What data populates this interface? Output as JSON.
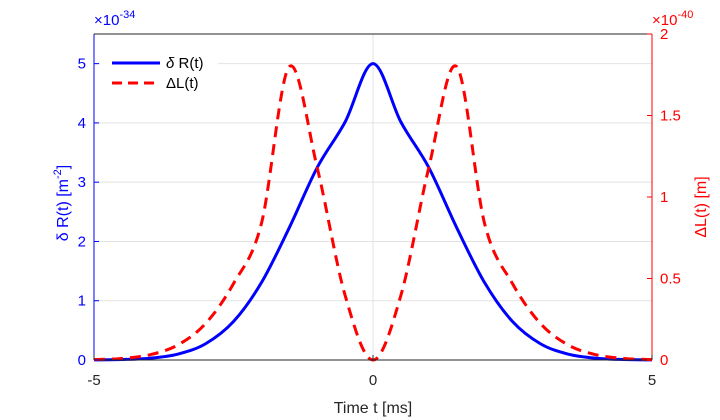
{
  "chart_data": {
    "type": "line",
    "xlabel": "Time t [ms]",
    "xlim": [
      -5,
      5
    ],
    "xticks": [
      -5,
      0,
      5
    ],
    "y_left": {
      "label": "δ R(t) [m-2]",
      "label_parts": {
        "prefix": "δ R(t) [m",
        "sup": "-2",
        "suffix": "]"
      },
      "color": "#0000ff",
      "lim": [
        0,
        5.5
      ],
      "ticks": [
        0,
        1,
        2,
        3,
        4,
        5
      ],
      "exponent_label": {
        "base": "×10",
        "exp": "-34"
      }
    },
    "y_right": {
      "label": "ΔL(t) [m]",
      "color": "#ff0000",
      "lim": [
        0,
        2
      ],
      "ticks": [
        0,
        0.5,
        1,
        1.5,
        2
      ],
      "tick_labels": [
        "0",
        "0.5",
        "1",
        "1.5",
        "2"
      ],
      "exponent_label": {
        "base": "×10",
        "exp": "-40"
      }
    },
    "legend": {
      "placement": "top-left",
      "entries": [
        {
          "series": 0,
          "label_prefix": "δ",
          "label_rest": " R(t)"
        },
        {
          "series": 1,
          "label_prefix": "",
          "label_rest": "ΔL(t)"
        }
      ]
    },
    "grid": true,
    "series": [
      {
        "name": "δ R(t)",
        "axis": "left",
        "style": "solid",
        "color": "#0000ff",
        "x": [
          -5,
          -4.5,
          -4,
          -3.5,
          -3,
          -2.5,
          -2,
          -1.5,
          -1,
          -0.5,
          0,
          0.5,
          1,
          1.5,
          2,
          2.5,
          3,
          3.5,
          4,
          4.5,
          5
        ],
        "y": [
          0.0017,
          0.0079,
          0.0302,
          0.0986,
          0.2743,
          0.6487,
          1.3046,
          2.2325,
          3.2465,
          4.0153,
          5.0,
          4.0153,
          3.2465,
          2.2325,
          1.3046,
          0.6487,
          0.2743,
          0.0986,
          0.0302,
          0.0079,
          0.0017
        ]
      },
      {
        "name": "ΔL(t)",
        "axis": "right",
        "style": "dashed",
        "color": "#ff0000",
        "x": [
          -5,
          -4.5,
          -4,
          -3.5,
          -3,
          -2.5,
          -2,
          -1.5,
          -1,
          -0.5,
          0,
          0.5,
          1,
          1.5,
          2,
          2.5,
          3,
          3.5,
          4,
          4.5,
          5
        ],
        "y": [
          0.0024,
          0.0095,
          0.032,
          0.0916,
          0.2241,
          0.4686,
          0.8366,
          1.8,
          1.1804,
          0.3971,
          0.0,
          0.3971,
          1.1804,
          1.8,
          0.8366,
          0.4686,
          0.2241,
          0.0916,
          0.032,
          0.0095,
          0.0024
        ]
      }
    ]
  }
}
